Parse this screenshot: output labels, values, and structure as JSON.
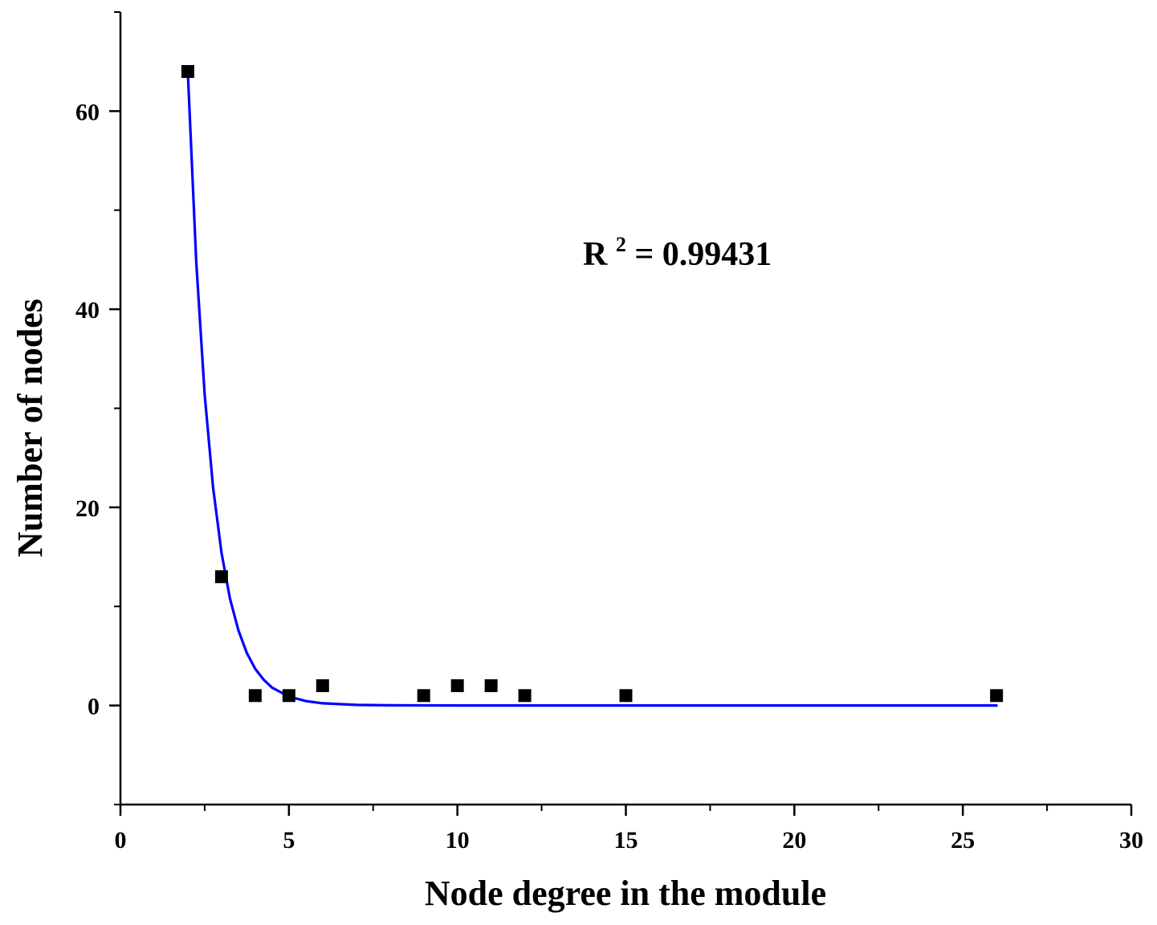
{
  "chart_data": {
    "type": "scatter",
    "title": "",
    "xlabel": "Node degree in the module",
    "ylabel": "Number of nodes",
    "xlim": [
      0,
      30
    ],
    "ylim": [
      -10,
      70
    ],
    "x_ticks_major": [
      0,
      5,
      10,
      15,
      20,
      25,
      30
    ],
    "x_ticks_minor": [
      2.5,
      7.5,
      12.5,
      17.5,
      22.5,
      27.5
    ],
    "y_ticks_major": [
      0,
      20,
      40,
      60
    ],
    "y_ticks_minor": [
      -10,
      10,
      30,
      50,
      70
    ],
    "grid": false,
    "annotation": {
      "base": "R",
      "superscript": "2",
      "rest": " = 0.99431"
    },
    "series": [
      {
        "kind": "points",
        "marker": "square",
        "color": "#000000",
        "x": [
          2,
          3,
          4,
          5,
          6,
          9,
          10,
          11,
          12,
          15,
          26
        ],
        "y": [
          64,
          13,
          1,
          1,
          2,
          1,
          2,
          2,
          1,
          1,
          1
        ]
      },
      {
        "kind": "fit-line",
        "color": "#0000ff",
        "x": [
          2,
          2.25,
          2.5,
          2.75,
          3,
          3.25,
          3.5,
          3.75,
          4,
          4.25,
          4.5,
          5,
          5.5,
          6,
          7,
          8,
          10,
          12,
          15,
          20,
          26
        ],
        "y": [
          64,
          44.8,
          31.4,
          22.0,
          15.4,
          10.8,
          7.6,
          5.3,
          3.7,
          2.6,
          1.8,
          0.9,
          0.45,
          0.22,
          0.06,
          0.02,
          0,
          0,
          0,
          0,
          0
        ]
      }
    ]
  }
}
